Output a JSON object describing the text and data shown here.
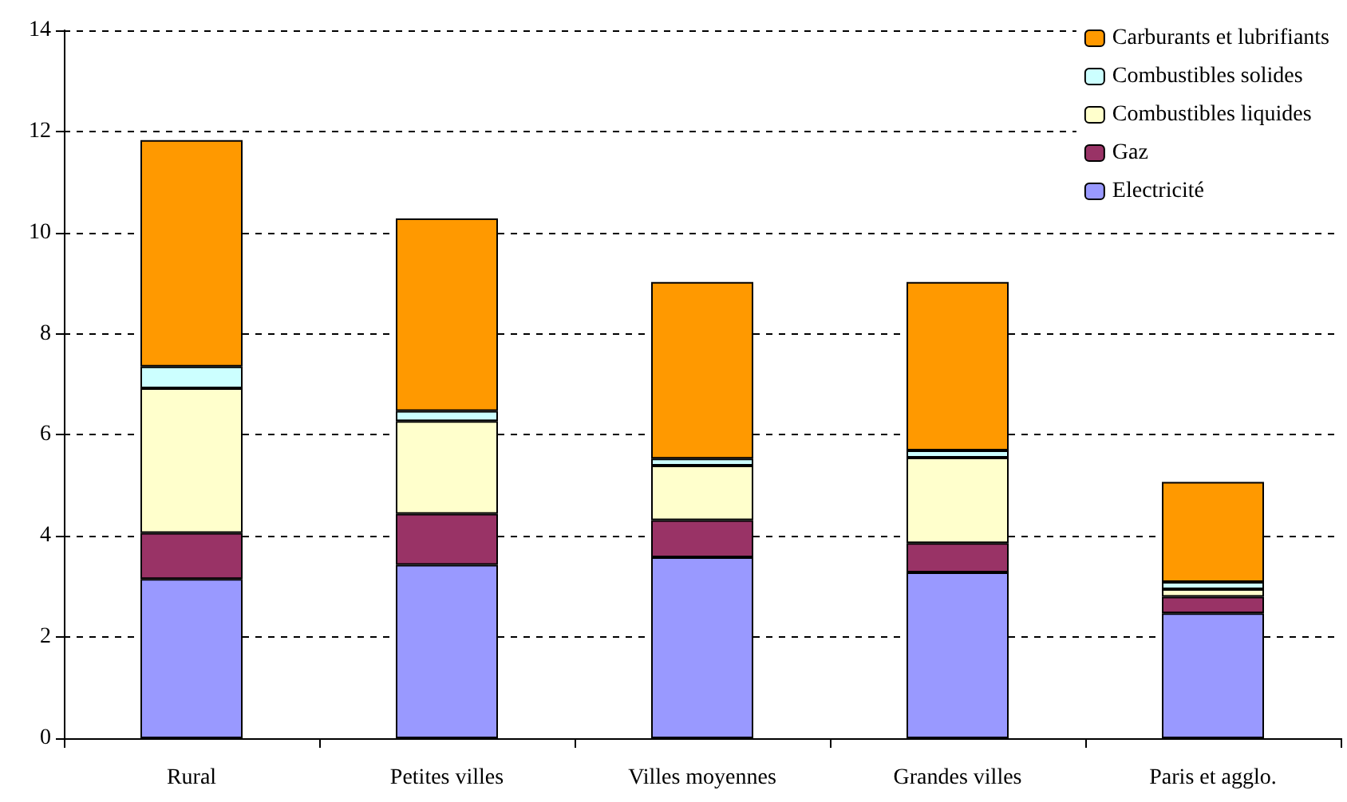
{
  "chart_data": {
    "type": "bar",
    "stacked": true,
    "categories": [
      "Rural",
      "Petites villes",
      "Villes moyennes",
      "Grandes villes",
      "Paris et agglo."
    ],
    "series": [
      {
        "name": "Electricité",
        "color": "#9999ff",
        "values": [
          3.15,
          3.43,
          3.58,
          3.28,
          2.47
        ]
      },
      {
        "name": "Gaz",
        "color": "#993366",
        "values": [
          0.91,
          1.01,
          0.73,
          0.58,
          0.33
        ]
      },
      {
        "name": "Combustibles liquides",
        "color": "#ffffcc",
        "values": [
          2.86,
          1.83,
          1.08,
          1.69,
          0.15
        ]
      },
      {
        "name": "Combustibles solides",
        "color": "#ccffff",
        "values": [
          0.43,
          0.2,
          0.14,
          0.14,
          0.14
        ]
      },
      {
        "name": "Carburants et lubrifiants",
        "color": "#ff9900",
        "values": [
          4.48,
          3.81,
          3.49,
          3.33,
          1.98
        ]
      }
    ],
    "ylim": [
      0,
      14
    ],
    "yticks": [
      0,
      2,
      4,
      6,
      8,
      10,
      12,
      14
    ],
    "grid": "y",
    "legend": "top right"
  }
}
